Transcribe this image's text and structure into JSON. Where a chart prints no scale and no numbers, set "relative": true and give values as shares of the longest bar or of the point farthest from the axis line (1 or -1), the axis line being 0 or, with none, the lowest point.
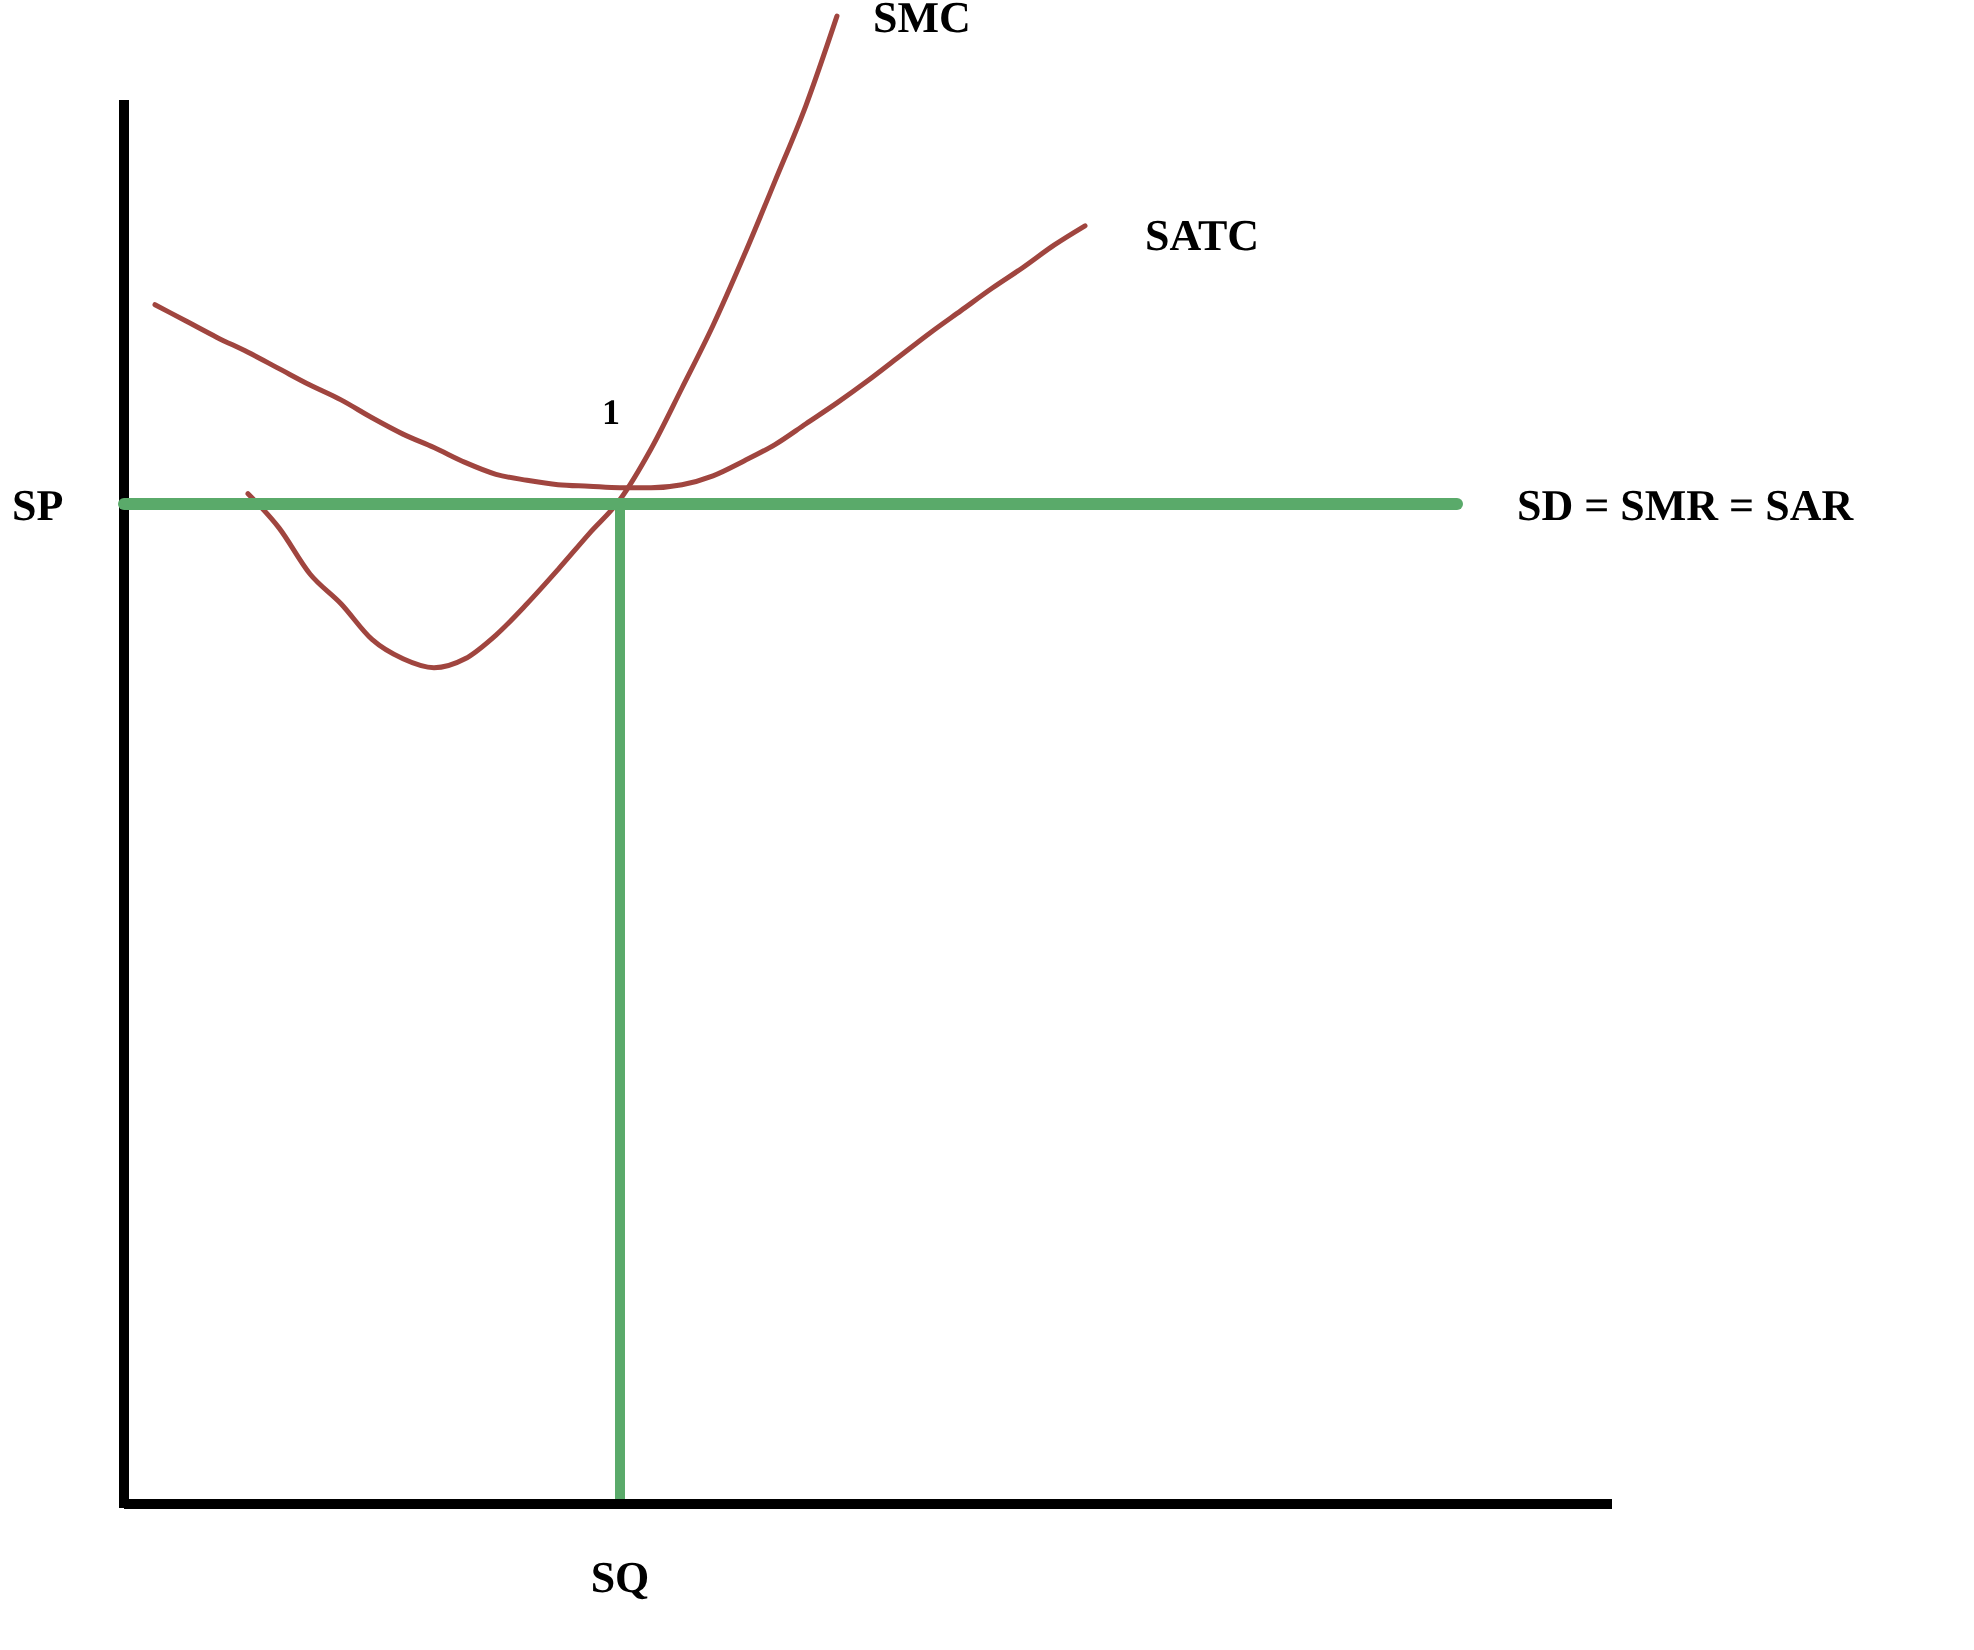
{
  "chart_data": {
    "type": "line",
    "relative": true,
    "legend": false,
    "grid": false,
    "marker": "none",
    "line_style": "solid",
    "categories": [
      null,
      null,
      null,
      null,
      null,
      null,
      null,
      null,
      null,
      null,
      null,
      null,
      null,
      null,
      null,
      null,
      null,
      null,
      null,
      null,
      null,
      null,
      null,
      null,
      null,
      null,
      null,
      null,
      null,
      null,
      null,
      null,
      null,
      null,
      null,
      null,
      null,
      null,
      null,
      null,
      null,
      null,
      null,
      null,
      null,
      null,
      null,
      null,
      null
    ],
    "series": [
      {
        "name": "SMC",
        "color": "#a0453f",
        "values": [
          null,
          null,
          null,
          null,
          0.679,
          0.656,
          0.625,
          0.605,
          0.581,
          0.568,
          0.562,
          0.568,
          0.584,
          0.605,
          0.628,
          0.652,
          0.675,
          0.709,
          0.75,
          0.792,
          0.839,
          0.889,
          0.94,
          1,
          null,
          null,
          null,
          null,
          null,
          null,
          null,
          null,
          null,
          null,
          null,
          null,
          null,
          null,
          null,
          null,
          null,
          null,
          null,
          null,
          null,
          null,
          null,
          null,
          null
        ]
      },
      {
        "name": "SATC",
        "color": "#a0453f",
        "values": [
          null,
          0.806,
          0.795,
          0.784,
          0.774,
          0.763,
          0.752,
          0.742,
          0.73,
          0.719,
          0.71,
          0.7,
          0.692,
          0.688,
          0.685,
          0.684,
          0.683,
          0.683,
          0.685,
          0.691,
          0.701,
          0.712,
          0.726,
          0.74,
          0.755,
          0.771,
          0.787,
          0.802,
          0.817,
          0.831,
          0.846,
          0.859,
          null,
          null,
          null,
          null,
          null,
          null,
          null,
          null,
          null,
          null,
          null,
          null,
          null,
          null,
          null,
          null,
          null
        ]
      },
      {
        "name": "SD = SMR = SAR",
        "color": "#5aaa6a",
        "values": [
          0.672,
          0.672,
          0.672,
          0.672,
          0.672,
          0.672,
          0.672,
          0.672,
          0.672,
          0.672,
          0.672,
          0.672,
          0.672,
          0.672,
          0.672,
          0.672,
          0.672,
          0.672,
          0.672,
          0.672,
          0.672,
          0.672,
          0.672,
          0.672,
          0.672,
          0.672,
          0.672,
          0.672,
          0.672,
          0.672,
          0.672,
          0.672,
          0.672,
          0.672,
          0.672,
          0.672,
          0.672,
          0.672,
          0.672,
          0.672,
          0.672,
          0.672,
          0.672,
          0.672,
          null,
          null,
          null,
          null,
          null
        ]
      }
    ],
    "annotations": [
      "SP",
      "1",
      "SQ"
    ]
  }
}
